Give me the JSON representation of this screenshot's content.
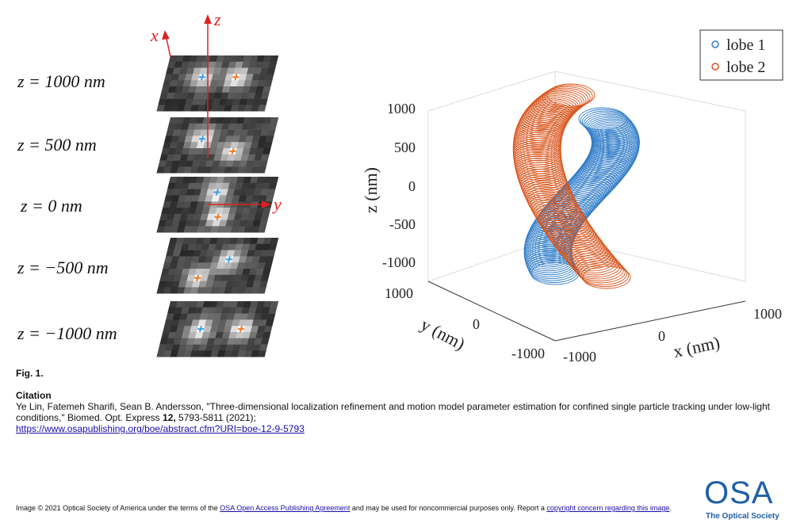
{
  "figure": {
    "depth_labels": [
      "z = 1000 nm",
      "z = 500 nm",
      "z = 0 nm",
      "z = −500 nm",
      "z = −1000 nm"
    ],
    "frame_axes": {
      "x": "x",
      "y": "y",
      "z": "z"
    },
    "plot": {
      "legend": [
        "lobe 1",
        "lobe 2"
      ],
      "z_label": "z (nm)",
      "y_label": "y (nm)",
      "x_label": "x (nm)",
      "z_ticks": [
        "1000",
        "500",
        "0",
        "-500",
        "-1000"
      ],
      "y_ticks": [
        "1000",
        "0",
        "-1000"
      ],
      "x_ticks": [
        "-1000",
        "0",
        "1000"
      ]
    }
  },
  "caption": {
    "label": "Fig. 1.",
    "citation_heading": "Citation",
    "citation_text": "Ye Lin, Fatemeh Sharifi, Sean B. Andersson, \"Three-dimensional localization refinement and motion model parameter estimation for confined single particle tracking under low-light conditions,\" Biomed. Opt. Express ",
    "volume": "12,",
    "pages": " 5793-5811 (2021);",
    "url": "https://www.osapublishing.org/boe/abstract.cfm?URI=boe-12-9-5793"
  },
  "footer": {
    "text_1": "Image © 2021 Optical Society of America under the terms of the ",
    "link_1": "OSA Open Access Publishing Agreement",
    "text_2": " and may be used for noncommercial purposes only. Report a ",
    "link_2": "copyright concern regarding this image",
    "text_3": ".",
    "logo": "OSA",
    "logo_sub": "The Optical Society"
  }
}
